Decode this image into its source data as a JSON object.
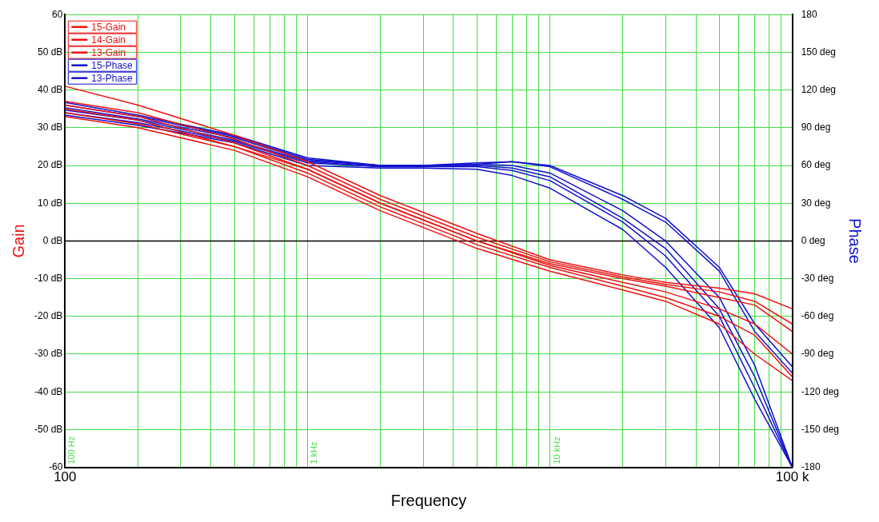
{
  "chart_data": {
    "type": "line",
    "xlabel": "Frequency",
    "ylabel": "Gain",
    "y2label": "Phase",
    "log": "x",
    "grid": true,
    "legend": "top left",
    "marker": "none",
    "line_style": "solid",
    "xlim": [
      100,
      100000
    ],
    "xticks": [
      {
        "value": 100,
        "label": "100"
      },
      {
        "value": 200,
        "label": null
      },
      {
        "value": 300,
        "label": null
      },
      {
        "value": 400,
        "label": null
      },
      {
        "value": 500,
        "label": null
      },
      {
        "value": 600,
        "label": null
      },
      {
        "value": 700,
        "label": null
      },
      {
        "value": 800,
        "label": null
      },
      {
        "value": 900,
        "label": null
      },
      {
        "value": 1000,
        "label": null
      },
      {
        "value": 2000,
        "label": null
      },
      {
        "value": 3000,
        "label": null
      },
      {
        "value": 4000,
        "label": null
      },
      {
        "value": 5000,
        "label": null
      },
      {
        "value": 6000,
        "label": null
      },
      {
        "value": 7000,
        "label": null
      },
      {
        "value": 8000,
        "label": null
      },
      {
        "value": 9000,
        "label": null
      },
      {
        "value": 10000,
        "label": null
      },
      {
        "value": 20000,
        "label": null
      },
      {
        "value": 30000,
        "label": null
      },
      {
        "value": 40000,
        "label": null
      },
      {
        "value": 50000,
        "label": null
      },
      {
        "value": 60000,
        "label": null
      },
      {
        "value": 70000,
        "label": null
      },
      {
        "value": 80000,
        "label": null
      },
      {
        "value": 90000,
        "label": null
      },
      {
        "value": 100000,
        "label": "100 k"
      }
    ],
    "ylim": [
      -60,
      60
    ],
    "yticks": [
      {
        "value": -60,
        "label": "-60"
      },
      {
        "value": -50,
        "label": "-50 dB"
      },
      {
        "value": -40,
        "label": "-40 dB"
      },
      {
        "value": -30,
        "label": "-30 dB"
      },
      {
        "value": -20,
        "label": "-20 dB"
      },
      {
        "value": -10,
        "label": "-10 dB"
      },
      {
        "value": 0,
        "label": "0 dB"
      },
      {
        "value": 10,
        "label": "10 dB"
      },
      {
        "value": 20,
        "label": "20 dB"
      },
      {
        "value": 30,
        "label": "30 dB"
      },
      {
        "value": 40,
        "label": "40 dB"
      },
      {
        "value": 50,
        "label": "50 dB"
      },
      {
        "value": 60,
        "label": "60"
      }
    ],
    "y2lim": [
      -180,
      180
    ],
    "y2ticks": [
      {
        "value": -180,
        "label": "-180"
      },
      {
        "value": -150,
        "label": "-150 deg"
      },
      {
        "value": -120,
        "label": "-120 deg"
      },
      {
        "value": -90,
        "label": "-90 deg"
      },
      {
        "value": -60,
        "label": "-60 deg"
      },
      {
        "value": -30,
        "label": "-30 deg"
      },
      {
        "value": 0,
        "label": "0 deg"
      },
      {
        "value": 30,
        "label": "30 deg"
      },
      {
        "value": 60,
        "label": "60 deg"
      },
      {
        "value": 90,
        "label": "90 deg"
      },
      {
        "value": 120,
        "label": "120 deg"
      },
      {
        "value": 150,
        "label": "150 deg"
      },
      {
        "value": 180,
        "label": "180"
      }
    ],
    "ref_lines": [
      {
        "axis": "y",
        "value": 0,
        "label": null,
        "color": "#000000"
      }
    ],
    "annotations": [
      "100 Hz",
      "1 kHz",
      "10 kHz"
    ],
    "series": [
      {
        "name": "15-Gain",
        "color": "#ee1111",
        "x": [
          100,
          200,
          500,
          1000,
          2000,
          5000,
          10000,
          20000,
          30000,
          50000,
          70000,
          100000
        ],
        "values": [
          41,
          36,
          28,
          21,
          12,
          2,
          -5,
          -9,
          -11,
          -12.5,
          -14,
          -18
        ]
      },
      {
        "name": "14-Gain",
        "color": "#ee1111",
        "x": [
          100,
          200,
          500,
          1000,
          2000,
          5000,
          10000,
          20000,
          30000,
          50000,
          70000,
          100000
        ],
        "values": [
          37,
          34,
          27,
          20,
          11,
          1,
          -5.5,
          -9.5,
          -11.5,
          -13.5,
          -16,
          -22
        ]
      },
      {
        "name": "13-Gain",
        "color": "#ee1111",
        "x": [
          100,
          200,
          500,
          1000,
          2000,
          5000,
          10000,
          20000,
          30000,
          50000,
          70000,
          100000
        ],
        "values": [
          36,
          33,
          26,
          19,
          10,
          0,
          -6,
          -10,
          -12,
          -15,
          -17,
          -24
        ]
      },
      {
        "color": "#ee1111",
        "x": [
          100,
          200,
          500,
          1000,
          2000,
          5000,
          10000,
          20000,
          30000,
          50000,
          70000,
          100000
        ],
        "values": [
          35,
          32,
          25,
          19,
          10,
          0,
          -6.5,
          -11,
          -13.5,
          -18,
          -22,
          -30
        ]
      },
      {
        "color": "#ee1111",
        "x": [
          100,
          200,
          500,
          1000,
          2000,
          5000,
          10000,
          20000,
          30000,
          50000,
          70000,
          100000
        ],
        "values": [
          34,
          31,
          25,
          18,
          9,
          -1,
          -7,
          -12,
          -15,
          -20,
          -25,
          -36
        ]
      },
      {
        "color": "#ee1111",
        "x": [
          100,
          200,
          500,
          1000,
          2000,
          5000,
          10000,
          20000,
          30000,
          50000,
          70000,
          100000
        ],
        "values": [
          33,
          30,
          24,
          17,
          8,
          -2,
          -8,
          -13,
          -16,
          -22,
          -30,
          -37
        ]
      },
      {
        "name": "15-Phase",
        "color": "#1111cc",
        "axis": "y2",
        "x": [
          100,
          200,
          500,
          1000,
          2000,
          3000,
          5000,
          7000,
          10000,
          20000,
          30000,
          50000,
          70000,
          100000
        ],
        "values": [
          110,
          100,
          84,
          66,
          60,
          60,
          61,
          63,
          60,
          36,
          18,
          -21,
          -66,
          -100
        ]
      },
      {
        "name": "13-Phase",
        "color": "#1111cc",
        "axis": "y2",
        "x": [
          100,
          200,
          500,
          1000,
          2000,
          3000,
          5000,
          7000,
          10000,
          20000,
          30000,
          50000,
          70000,
          100000
        ],
        "values": [
          108,
          99,
          83,
          65,
          60,
          60,
          62,
          63,
          59,
          33,
          15,
          -24,
          -72,
          -105
        ]
      },
      {
        "color": "#1111cc",
        "axis": "y2",
        "x": [
          100,
          200,
          500,
          1000,
          2000,
          3000,
          5000,
          7000,
          10000,
          20000,
          30000,
          50000,
          70000,
          100000
        ],
        "values": [
          106,
          97,
          82,
          64,
          60,
          60,
          61,
          60,
          54,
          24,
          0,
          -45,
          -99,
          -180
        ]
      },
      {
        "color": "#1111cc",
        "axis": "y2",
        "x": [
          100,
          200,
          500,
          1000,
          2000,
          3000,
          5000,
          7000,
          10000,
          20000,
          30000,
          50000,
          70000,
          100000
        ],
        "values": [
          104,
          96,
          80,
          63,
          59,
          59,
          60,
          58,
          51,
          18,
          -6,
          -54,
          -108,
          -180
        ]
      },
      {
        "color": "#1111cc",
        "axis": "y2",
        "x": [
          100,
          200,
          500,
          1000,
          2000,
          3000,
          5000,
          7000,
          10000,
          20000,
          30000,
          50000,
          70000,
          100000
        ],
        "values": [
          102,
          94,
          79,
          62,
          59,
          59,
          59,
          56,
          48,
          15,
          -12,
          -60,
          -117,
          -180
        ]
      },
      {
        "color": "#1111cc",
        "axis": "y2",
        "x": [
          100,
          200,
          500,
          1000,
          2000,
          3000,
          5000,
          7000,
          10000,
          20000,
          30000,
          50000,
          70000,
          100000
        ],
        "values": [
          100,
          92,
          78,
          60,
          58,
          58,
          57,
          52,
          42,
          9,
          -21,
          -69,
          -126,
          -180
        ]
      }
    ]
  }
}
